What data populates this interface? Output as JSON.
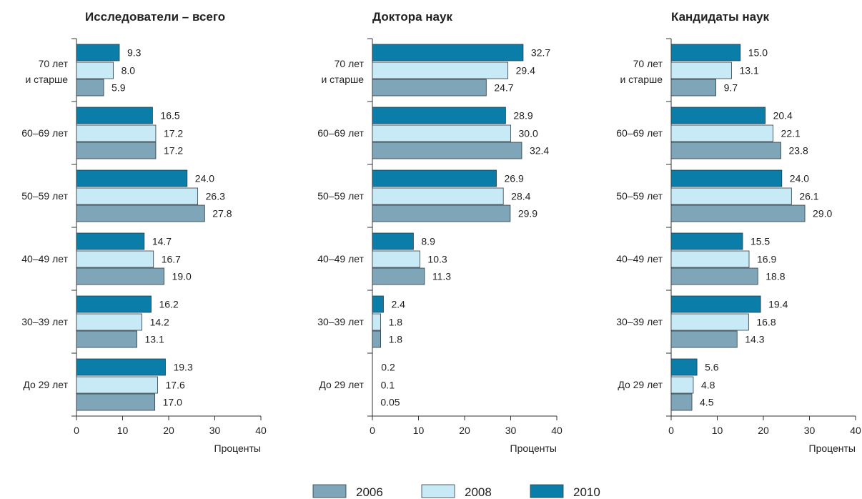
{
  "chart_data": [
    {
      "type": "bar",
      "orientation": "horizontal",
      "title": "Исследователи – всего",
      "xlabel": "Проценты",
      "xlim": [
        0,
        40
      ],
      "xticks": [
        "0",
        "10",
        "20",
        "30",
        "40"
      ],
      "categories": [
        "70 лет\nи старше",
        "60–69 лет",
        "50–59 лет",
        "40–49 лет",
        "30–39 лет",
        "До 29 лет"
      ],
      "series": [
        {
          "name": "2010",
          "values": [
            9.3,
            16.5,
            24.0,
            14.7,
            16.2,
            19.3
          ],
          "labels": [
            "9.3",
            "16.5",
            "24.0",
            "14.7",
            "16.2",
            "19.3"
          ]
        },
        {
          "name": "2008",
          "values": [
            8.0,
            17.2,
            26.3,
            16.7,
            14.2,
            17.6
          ],
          "labels": [
            "8.0",
            "17.2",
            "26.3",
            "16.7",
            "14.2",
            "17.6"
          ]
        },
        {
          "name": "2006",
          "values": [
            5.9,
            17.2,
            27.8,
            19.0,
            13.1,
            17.0
          ],
          "labels": [
            "5.9",
            "17.2",
            "27.8",
            "19.0",
            "13.1",
            "17.0"
          ]
        }
      ]
    },
    {
      "type": "bar",
      "orientation": "horizontal",
      "title": "Доктора наук",
      "xlabel": "Проценты",
      "xlim": [
        0,
        40
      ],
      "xticks": [
        "0",
        "10",
        "20",
        "30",
        "40"
      ],
      "categories": [
        "70 лет\nи старше",
        "60–69 лет",
        "50–59 лет",
        "40–49 лет",
        "30–39 лет",
        "До 29 лет"
      ],
      "series": [
        {
          "name": "2010",
          "values": [
            32.7,
            28.9,
            26.9,
            8.9,
            2.4,
            0.2
          ],
          "labels": [
            "32.7",
            "28.9",
            "26.9",
            "8.9",
            "2.4",
            "0.2"
          ]
        },
        {
          "name": "2008",
          "values": [
            29.4,
            30.0,
            28.4,
            10.3,
            1.8,
            0.1
          ],
          "labels": [
            "29.4",
            "30.0",
            "28.4",
            "10.3",
            "1.8",
            "0.1"
          ]
        },
        {
          "name": "2006",
          "values": [
            24.7,
            32.4,
            29.9,
            11.3,
            1.8,
            0.05
          ],
          "labels": [
            "24.7",
            "32.4",
            "29.9",
            "11.3",
            "1.8",
            "0.05"
          ]
        }
      ]
    },
    {
      "type": "bar",
      "orientation": "horizontal",
      "title": "Кандидаты наук",
      "xlabel": "Проценты",
      "xlim": [
        0,
        40
      ],
      "xticks": [
        "0",
        "10",
        "20",
        "30",
        "40"
      ],
      "categories": [
        "70 лет\nи старше",
        "60–69 лет",
        "50–59 лет",
        "40–49 лет",
        "30–39 лет",
        "До 29 лет"
      ],
      "series": [
        {
          "name": "2010",
          "values": [
            15.0,
            20.4,
            24.0,
            15.5,
            19.4,
            5.6
          ],
          "labels": [
            "15.0",
            "20.4",
            "24.0",
            "15.5",
            "19.4",
            "5.6"
          ]
        },
        {
          "name": "2008",
          "values": [
            13.1,
            22.1,
            26.1,
            16.9,
            16.8,
            4.8
          ],
          "labels": [
            "13.1",
            "22.1",
            "26.1",
            "16.9",
            "16.8",
            "4.8"
          ]
        },
        {
          "name": "2006",
          "values": [
            9.7,
            23.8,
            29.0,
            18.8,
            14.3,
            4.5
          ],
          "labels": [
            "9.7",
            "23.8",
            "29.0",
            "18.8",
            "14.3",
            "4.5"
          ]
        }
      ]
    }
  ],
  "legend": {
    "position": "bottom-center",
    "items": [
      {
        "label": "2006",
        "color": "#7fa6b8"
      },
      {
        "label": "2008",
        "color": "#c8eaf7"
      },
      {
        "label": "2010",
        "color": "#0a7ea8"
      }
    ]
  },
  "colors": {
    "2010": "#0a7ea8",
    "2008": "#c8eaf7",
    "2006": "#7fa6b8"
  }
}
